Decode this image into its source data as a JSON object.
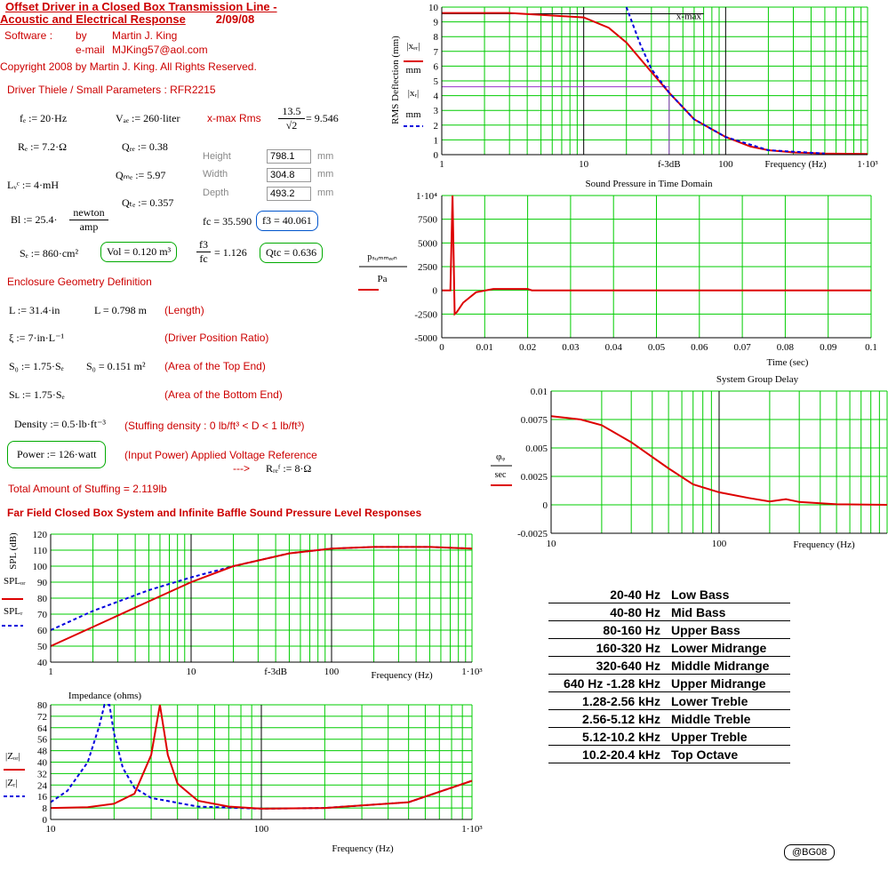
{
  "header": {
    "title1": "Offset Driver in a Closed Box Transmission Line -",
    "title2": "Acoustic and Electrical Response",
    "date": "2/09/08",
    "software_label": "Software :",
    "by_label": "by",
    "author": "Martin J. King",
    "email_label": "e-mail",
    "email": "MJKing57@aol.com",
    "copyright": "Copyright 2008 by Martin J. King. All Rights Reserved."
  },
  "driver": {
    "heading": "Driver Thiele / Small Parameters : RFR2215",
    "fd": "fₑ := 20·Hz",
    "vad": "Vₐₑ := 260·liter",
    "xmax_label": "x-max Rms",
    "xmax_num": "13.5",
    "xmax_den": "√2",
    "xmax_value": "= 9.546",
    "re": "Rₑ := 7.2·Ω",
    "qed": "Qₑₑ := 0.38",
    "qmd": "Qₘₑ := 5.97",
    "qtd": "Qₜₑ := 0.357",
    "lvc": "Lᵥᶜ := 4·mH",
    "bl_left": "Bl := 25.4·",
    "bl_num": "newton",
    "bl_den": "amp",
    "sd": "Sₑ := 860·cm²",
    "vol": "Vol = 0.120 m³",
    "fc": "fc = 35.590",
    "f3": "f3 = 40.061",
    "ratio_num": "f3",
    "ratio_den": "fc",
    "ratio_value": "= 1.126",
    "qtc": "Qtc = 0.636"
  },
  "dims": {
    "height_label": "Height",
    "height_value": "798.1",
    "height_unit": "mm",
    "width_label": "Width",
    "width_value": "304.8",
    "width_unit": "mm",
    "depth_label": "Depth",
    "depth_value": "493.2",
    "depth_unit": "mm"
  },
  "enclosure": {
    "heading": "Enclosure Geometry Definition",
    "L_in": "L := 31.4·in",
    "L_m": "L = 0.798 m",
    "L_desc": "(Length)",
    "xi": "ξ := 7·in·L⁻¹",
    "xi_desc": "(Driver Position Ratio)",
    "s0": "S₀ := 1.75·Sₑ",
    "s0_m": "S₀ = 0.151 m²",
    "s0_desc": "(Area of the Top End)",
    "sl": "Sʟ := 1.75·Sₑ",
    "sl_desc": "(Area of the Bottom End)",
    "density": "Density := 0.5·lb·ft⁻³",
    "density_desc": "(Stuffing density : 0 lb/ft³ < D < 1 lb/ft³)",
    "power": "Power := 126·watt",
    "power_desc": "(Input Power) Applied Voltage Reference",
    "arrow": "--->",
    "rref": "Rᵣₑᶠ := 8·Ω",
    "stuffing": "Total Amount of Stuffing  = 2.119lb",
    "spl_heading": "Far Field Closed Box System and Infinite Baffle Sound Pressure Level Responses"
  },
  "charts": {
    "deflection": {
      "ylabel": "RMS Deflection (mm)",
      "leg1_top": "|xₑᵣ|",
      "leg1_bot": "mm",
      "leg2_top": "|xᵣ|",
      "leg2_bot": "mm",
      "xlabel": "Frequency (Hz)",
      "ticks_x": [
        "1",
        "10",
        "f-3dB",
        "100",
        "1·10³"
      ],
      "ticks_y": [
        "0",
        "1",
        "2",
        "3",
        "4",
        "5",
        "6",
        "7",
        "8",
        "9",
        "10"
      ],
      "annot": "x-max"
    },
    "spt": {
      "title": "Sound Pressure in Time Domain",
      "ylabel_top": "pₛᵤₘₘₑₑₙ",
      "ylabel_bot": "Pa",
      "xlabel": "Time (sec)",
      "ticks_x": [
        "0",
        "0.01",
        "0.02",
        "0.03",
        "0.04",
        "0.05",
        "0.06",
        "0.07",
        "0.08",
        "0.09",
        "0.1"
      ],
      "ticks_y": [
        "1·10⁴",
        "7500",
        "5000",
        "2500",
        "0",
        "-2500",
        "-5000"
      ]
    },
    "gd": {
      "title": "System Group Delay",
      "ylabel_top": "φᵩ",
      "ylabel_bot": "sec",
      "xlabel": "Frequency (Hz)",
      "ticks_x": [
        "10",
        "100"
      ],
      "ticks_y": [
        "0.01",
        "0.0075",
        "0.005",
        "0.0025",
        "0",
        "-0.0025"
      ]
    },
    "spl": {
      "ylabel": "SPL (dB)",
      "leg1": "SPLₒᵣ",
      "leg2": "SPLᵣ",
      "xlabel": "Frequency (Hz)",
      "ticks_x": [
        "1",
        "10",
        "f-3dB",
        "100",
        "1·10³"
      ],
      "ticks_y": [
        "120",
        "110",
        "100",
        "90",
        "80",
        "70",
        "60",
        "50",
        "40"
      ]
    },
    "imp": {
      "title": "Impedance (ohms)",
      "leg1": "|Zₒᵣ|",
      "leg2": "|Zᵣ|",
      "xlabel": "Frequency (Hz)",
      "ticks_x": [
        "10",
        "100",
        "1·10³"
      ],
      "ticks_y": [
        "80",
        "72",
        "64",
        "56",
        "48",
        "40",
        "32",
        "24",
        "16",
        "8",
        "0"
      ]
    }
  },
  "bands": [
    {
      "range": "20-40 Hz",
      "name": "Low Bass"
    },
    {
      "range": "40-80 Hz",
      "name": "Mid Bass"
    },
    {
      "range": "80-160 Hz",
      "name": "Upper Bass"
    },
    {
      "range": "160-320 Hz",
      "name": "Lower Midrange"
    },
    {
      "range": "320-640 Hz",
      "name": "Middle Midrange"
    },
    {
      "range": "640 Hz -1.28 kHz",
      "name": "Upper Midrange"
    },
    {
      "range": "1.28-2.56 kHz",
      "name": "Lower Treble"
    },
    {
      "range": "2.56-5.12 kHz",
      "name": "Middle Treble"
    },
    {
      "range": "5.12-10.2 kHz",
      "name": "Upper Treble"
    },
    {
      "range": "10.2-20.4 kHz",
      "name": "Top Octave"
    }
  ],
  "badge": "@BG08",
  "chart_data": [
    {
      "type": "line",
      "xscale": "log",
      "xlim": [
        1,
        1000
      ],
      "ylim": [
        0,
        10
      ],
      "xlabel": "Frequency (Hz)",
      "ylabel": "RMS Deflection (mm)",
      "series": [
        {
          "name": "|x_dr|",
          "x": [
            1,
            3,
            10,
            15,
            20,
            30,
            40,
            60,
            100,
            150,
            200,
            300,
            500,
            1000
          ],
          "y": [
            9.6,
            9.6,
            9.3,
            8.6,
            7.6,
            5.6,
            4.2,
            2.4,
            1.2,
            0.55,
            0.3,
            0.15,
            0.08,
            0.05
          ]
        },
        {
          "name": "|x_r|",
          "x": [
            20,
            25,
            30,
            40,
            60,
            100,
            200,
            500
          ],
          "y": [
            10,
            7.5,
            5.8,
            4.2,
            2.4,
            1.2,
            0.3,
            0.08
          ]
        }
      ]
    },
    {
      "type": "line",
      "xlim": [
        0,
        0.1
      ],
      "ylim": [
        -5000,
        10000
      ],
      "title": "Sound Pressure in Time Domain",
      "xlabel": "Time (sec)",
      "series": [
        {
          "name": "p_summed_n",
          "x": [
            0,
            0.002,
            0.0025,
            0.003,
            0.0035,
            0.005,
            0.008,
            0.012,
            0.02,
            0.021,
            0.1
          ],
          "y": [
            0,
            0,
            10000,
            -2500,
            -2300,
            -1300,
            -200,
            150,
            150,
            0,
            0
          ]
        }
      ]
    },
    {
      "type": "line",
      "xscale": "log",
      "xlim": [
        10,
        1000
      ],
      "ylim": [
        -0.0025,
        0.01
      ],
      "title": "System Group Delay",
      "xlabel": "Frequency (Hz)",
      "series": [
        {
          "name": "phi_q",
          "x": [
            10,
            15,
            20,
            30,
            50,
            70,
            100,
            150,
            200,
            250,
            300,
            500,
            1000
          ],
          "y": [
            0.0078,
            0.0075,
            0.007,
            0.0055,
            0.0032,
            0.0018,
            0.0011,
            0.0006,
            0.0003,
            0.0005,
            0.00025,
            5e-05,
            0
          ]
        }
      ]
    },
    {
      "type": "line",
      "xscale": "log",
      "xlim": [
        1,
        1000
      ],
      "ylim": [
        40,
        120
      ],
      "xlabel": "Frequency (Hz)",
      "ylabel": "SPL (dB)",
      "series": [
        {
          "name": "SPL_or",
          "x": [
            1,
            2,
            5,
            10,
            20,
            50,
            100,
            200,
            500,
            1000
          ],
          "y": [
            50,
            62,
            78,
            90,
            100,
            108,
            111,
            112,
            112,
            111
          ]
        },
        {
          "name": "SPL_r",
          "x": [
            1,
            2,
            5,
            10,
            20,
            50,
            100,
            200,
            500,
            1000
          ],
          "y": [
            60,
            72,
            85,
            93,
            100,
            108,
            111,
            112,
            112,
            111
          ]
        }
      ]
    },
    {
      "type": "line",
      "xscale": "log",
      "xlim": [
        10,
        1000
      ],
      "ylim": [
        0,
        80
      ],
      "title": "Impedance (ohms)",
      "xlabel": "Frequency (Hz)",
      "series": [
        {
          "name": "|Z_or|",
          "x": [
            10,
            15,
            20,
            25,
            30,
            33,
            36,
            40,
            50,
            70,
            100,
            200,
            500,
            1000
          ],
          "y": [
            8,
            8.5,
            11,
            18,
            45,
            80,
            45,
            25,
            13,
            9,
            7.5,
            8,
            12,
            27
          ]
        },
        {
          "name": "|Z_r|",
          "x": [
            10,
            12,
            15,
            17,
            18,
            19,
            20,
            22,
            25,
            30,
            50,
            100,
            200,
            500,
            1000
          ],
          "y": [
            12,
            20,
            40,
            65,
            80,
            80,
            60,
            36,
            22,
            15,
            9,
            7.5,
            8,
            12,
            27
          ]
        }
      ]
    }
  ]
}
